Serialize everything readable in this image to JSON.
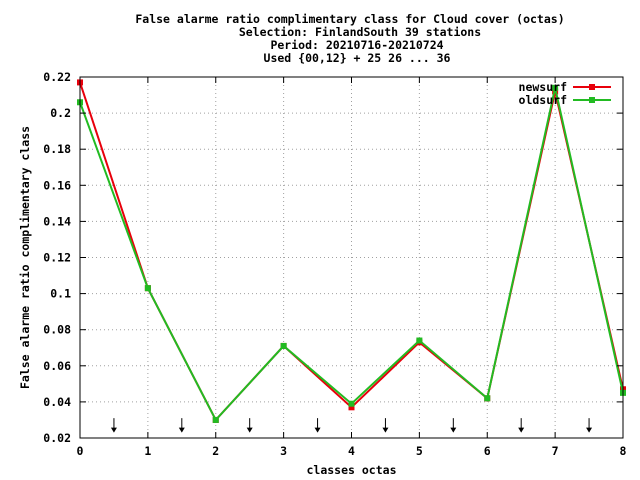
{
  "chart_data": {
    "type": "line",
    "title_lines": [
      "False alarme ratio complimentary class  for Cloud cover (octas)",
      "Selection: FinlandSouth     39 stations",
      "Period: 20210716-20210724",
      "Used {00,12} + 25 26 ... 36"
    ],
    "xlabel": "classes octas",
    "ylabel": "False alarme ratio complimentary class",
    "xlim": [
      0,
      8
    ],
    "ylim": [
      0.02,
      0.22
    ],
    "x_ticks": [
      "0",
      "1",
      "2",
      "3",
      "4",
      "5",
      "6",
      "7",
      "8"
    ],
    "y_ticks": [
      "0.02",
      "0.04",
      "0.06",
      "0.08",
      "0.1",
      "0.12",
      "0.14",
      "0.16",
      "0.18",
      "0.2",
      "0.22"
    ],
    "grid": true,
    "legend_position": "top-right",
    "x": [
      0,
      1,
      2,
      3,
      4,
      5,
      6,
      7,
      8
    ],
    "series": [
      {
        "name": "newsurf",
        "color": "#e8000b",
        "values": [
          0.217,
          0.103,
          0.03,
          0.071,
          0.037,
          0.073,
          0.042,
          0.212,
          0.047
        ]
      },
      {
        "name": "oldsurf",
        "color": "#22bb22",
        "values": [
          0.206,
          0.103,
          0.03,
          0.071,
          0.039,
          0.074,
          0.042,
          0.214,
          0.045
        ]
      }
    ],
    "arrow_markers_x": [
      0.5,
      1.5,
      2.5,
      3.5,
      4.5,
      5.5,
      6.5,
      7.5
    ]
  }
}
